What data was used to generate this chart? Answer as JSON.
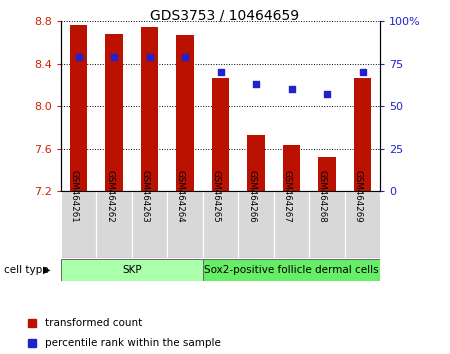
{
  "title": "GDS3753 / 10464659",
  "samples": [
    "GSM464261",
    "GSM464262",
    "GSM464263",
    "GSM464264",
    "GSM464265",
    "GSM464266",
    "GSM464267",
    "GSM464268",
    "GSM464269"
  ],
  "bar_values": [
    8.76,
    8.68,
    8.75,
    8.67,
    8.27,
    7.73,
    7.63,
    7.52,
    8.27
  ],
  "percentile_values": [
    79,
    79,
    79,
    79,
    70,
    63,
    60,
    57,
    70
  ],
  "ylim_left": [
    7.2,
    8.8
  ],
  "ylim_right": [
    0,
    100
  ],
  "yticks_left": [
    7.2,
    7.6,
    8.0,
    8.4,
    8.8
  ],
  "yticks_right": [
    0,
    25,
    50,
    75,
    100
  ],
  "bar_color": "#bb1100",
  "dot_color": "#2222cc",
  "cell_type_groups": [
    {
      "label": "SKP",
      "start": 0,
      "end": 3,
      "color": "#aaffaa"
    },
    {
      "label": "Sox2-positive follicle dermal cells",
      "start": 4,
      "end": 8,
      "color": "#66ee66"
    }
  ],
  "legend_items": [
    {
      "label": "transformed count",
      "color": "#bb1100"
    },
    {
      "label": "percentile rank within the sample",
      "color": "#2222cc"
    }
  ],
  "cell_type_label": "cell type",
  "background_color": "#ffffff",
  "tick_label_color_left": "#cc2200",
  "tick_label_color_right": "#2222cc",
  "bar_width": 0.5
}
